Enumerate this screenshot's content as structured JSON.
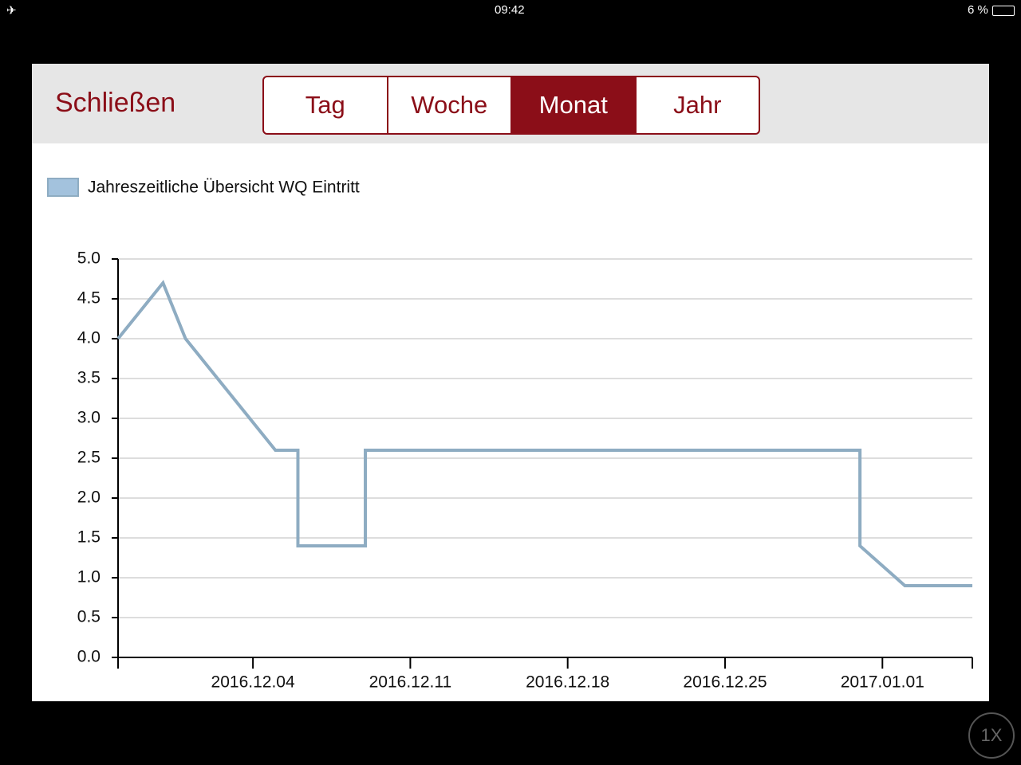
{
  "status_bar": {
    "time": "09:42",
    "battery": "6 %"
  },
  "header": {
    "close": "Schließen",
    "tabs": [
      "Tag",
      "Woche",
      "Monat",
      "Jahr"
    ],
    "selected_tab": 2
  },
  "speed_badge": "1X",
  "chart_data": {
    "type": "line",
    "x": [
      "2016.11.28",
      "2016.11.30",
      "2016.12.01",
      "2016.12.05",
      "2016.12.06",
      "2016.12.06",
      "2016.12.09",
      "2016.12.09",
      "2016.12.31",
      "2016.12.31",
      "2017.01.02",
      "2017.01.05"
    ],
    "series": [
      {
        "name": "Jahreszeitliche Übersicht WQ Eintritt",
        "color": "#8eacc2",
        "values": [
          4.0,
          4.7,
          4.0,
          2.6,
          2.6,
          1.4,
          1.4,
          2.6,
          2.6,
          1.4,
          0.9,
          0.9
        ]
      }
    ],
    "legend_color": "#a3c2dd",
    "xlim": [
      "2016.11.28",
      "2017.01.05"
    ],
    "xticks": [
      "2016.12.04",
      "2016.12.11",
      "2016.12.18",
      "2016.12.25",
      "2017.01.01"
    ],
    "ylim": [
      0,
      5
    ],
    "yticks": [
      {
        "value": 0,
        "label": "0.0"
      },
      0.5,
      {
        "value": 1,
        "label": "1.0"
      },
      1.5,
      {
        "value": 2,
        "label": "2.0"
      },
      2.5,
      {
        "value": 3,
        "label": "3.0"
      },
      3.5,
      {
        "value": 4,
        "label": "4.0"
      },
      4.5,
      {
        "value": 5,
        "label": "5.0"
      }
    ],
    "grid": true,
    "legend": "top-left"
  }
}
